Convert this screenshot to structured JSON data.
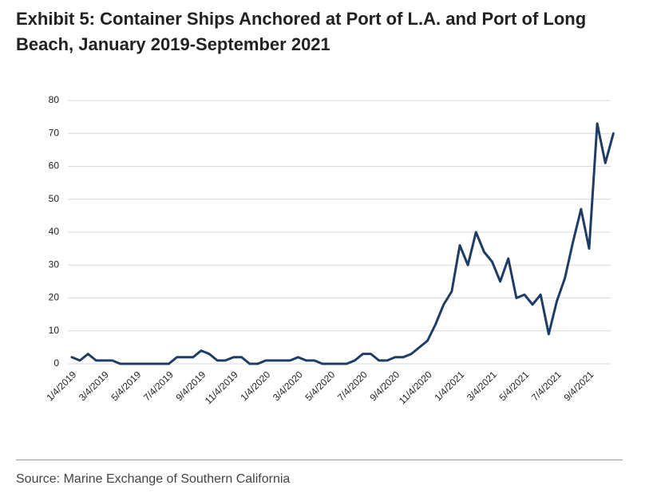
{
  "chart_data": {
    "type": "line",
    "title": "Exhibit 5: Container Ships Anchored at Port of L.A. and Port of Long Beach, January 2019-September 2021",
    "source": "Source: Marine Exchange of Southern California",
    "categories": [
      "1/4/2019",
      null,
      null,
      null,
      "3/4/2019",
      null,
      null,
      null,
      "5/4/2019",
      null,
      null,
      null,
      "7/4/2019",
      null,
      null,
      null,
      "9/4/2019",
      null,
      null,
      null,
      "11/4/2019",
      null,
      null,
      null,
      "1/4/2020",
      null,
      null,
      null,
      "3/4/2020",
      null,
      null,
      null,
      "5/4/2020",
      null,
      null,
      null,
      "7/4/2020",
      null,
      null,
      null,
      "9/4/2020",
      null,
      null,
      null,
      "11/4/2020",
      null,
      null,
      null,
      "1/4/2021",
      null,
      null,
      null,
      "3/4/2021",
      null,
      null,
      null,
      "5/4/2021",
      null,
      null,
      null,
      "7/4/2021",
      null,
      null,
      null,
      "9/4/2021",
      null,
      null,
      null
    ],
    "values": [
      2,
      1,
      3,
      1,
      1,
      1,
      0,
      0,
      0,
      0,
      0,
      0,
      0,
      2,
      2,
      2,
      4,
      3,
      1,
      1,
      2,
      2,
      0,
      0,
      1,
      1,
      1,
      1,
      2,
      1,
      1,
      0,
      0,
      0,
      0,
      1,
      3,
      3,
      1,
      1,
      2,
      2,
      3,
      5,
      7,
      12,
      18,
      22,
      36,
      30,
      40,
      34,
      31,
      25,
      32,
      20,
      21,
      18,
      21,
      9,
      19,
      26,
      37,
      47,
      35,
      73,
      61,
      70
    ],
    "color": "#1f3d64",
    "ylim": [
      0,
      80
    ],
    "yticks": [
      0,
      10,
      20,
      30,
      40,
      50,
      60,
      70,
      80
    ],
    "grid": true
  }
}
